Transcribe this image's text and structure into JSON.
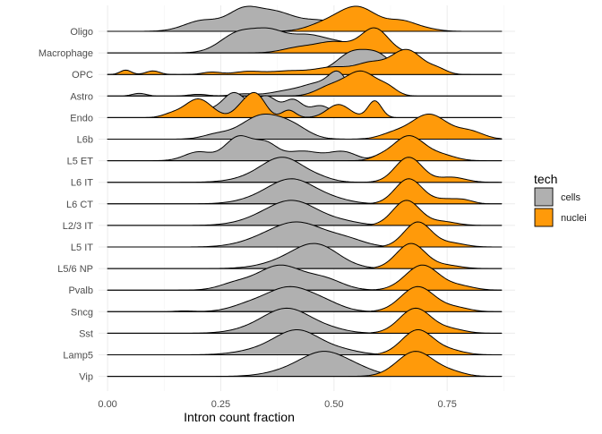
{
  "chart_data": {
    "type": "ridgeline",
    "title": "",
    "xlabel": "Intron count fraction",
    "ylabel": "",
    "xlim": [
      -0.02,
      0.9
    ],
    "x_ticks": [
      0.0,
      0.25,
      0.5,
      0.75
    ],
    "x_tick_labels": [
      "0.00",
      "0.25",
      "0.50",
      "0.75"
    ],
    "grid": true,
    "legend": {
      "title": "tech",
      "position": "right",
      "entries": [
        {
          "label": "cells",
          "color": "#b0b0b0"
        },
        {
          "label": "nuclei",
          "color": "#ff9a0a"
        }
      ]
    },
    "baseline_extent": [
      0.0,
      0.87
    ],
    "categories": [
      "Oligo",
      "Macrophage",
      "OPC",
      "Astro",
      "Endo",
      "L6b",
      "L5 ET",
      "L6 IT",
      "L6 CT",
      "L2/3 IT",
      "L5 IT",
      "L5/6 NP",
      "Pvalb",
      "Sncg",
      "Sst",
      "Lamp5",
      "Vip"
    ],
    "series": [
      {
        "name": "cells",
        "color": "#b0b0b0",
        "densities": [
          {
            "category": "Oligo",
            "peaks": [
              [
                0.21,
                0.35,
                0.04
              ],
              [
                0.3,
                0.65,
                0.035
              ],
              [
                0.37,
                0.55,
                0.04
              ],
              [
                0.47,
                0.35,
                0.05
              ]
            ]
          },
          {
            "category": "Macrophage",
            "peaks": [
              [
                0.29,
                0.55,
                0.04
              ],
              [
                0.36,
                0.5,
                0.035
              ],
              [
                0.44,
                0.45,
                0.04
              ],
              [
                0.52,
                0.25,
                0.04
              ]
            ]
          },
          {
            "category": "OPC",
            "peaks": [
              [
                0.44,
                0.12,
                0.03
              ],
              [
                0.54,
                0.7,
                0.035
              ],
              [
                0.6,
                0.55,
                0.03
              ]
            ]
          },
          {
            "category": "Astro",
            "peaks": [
              [
                0.07,
                0.08,
                0.015
              ],
              [
                0.2,
                0.05,
                0.02
              ],
              [
                0.3,
                0.06,
                0.025
              ],
              [
                0.4,
                0.15,
                0.04
              ],
              [
                0.47,
                0.35,
                0.035
              ],
              [
                0.51,
                0.55,
                0.02
              ]
            ]
          },
          {
            "category": "Endo",
            "peaks": [
              [
                0.22,
                0.15,
                0.03
              ],
              [
                0.28,
                0.5,
                0.025
              ],
              [
                0.35,
                0.45,
                0.025
              ],
              [
                0.41,
                0.35,
                0.02
              ],
              [
                0.47,
                0.25,
                0.025
              ]
            ]
          },
          {
            "category": "L6b",
            "peaks": [
              [
                0.24,
                0.15,
                0.03
              ],
              [
                0.34,
                0.8,
                0.045
              ],
              [
                0.41,
                0.35,
                0.035
              ]
            ]
          },
          {
            "category": "L5 ET",
            "peaks": [
              [
                0.2,
                0.2,
                0.03
              ],
              [
                0.29,
                0.55,
                0.03
              ],
              [
                0.35,
                0.35,
                0.025
              ],
              [
                0.43,
                0.22,
                0.04
              ],
              [
                0.52,
                0.2,
                0.03
              ],
              [
                0.6,
                0.12,
                0.015
              ]
            ]
          },
          {
            "category": "L6 IT",
            "peaks": [
              [
                0.33,
                0.2,
                0.05
              ],
              [
                0.39,
                0.95,
                0.045
              ],
              [
                0.47,
                0.12,
                0.03
              ]
            ]
          },
          {
            "category": "L6 CT",
            "peaks": [
              [
                0.34,
                0.2,
                0.05
              ],
              [
                0.41,
                1.0,
                0.05
              ],
              [
                0.5,
                0.15,
                0.04
              ]
            ]
          },
          {
            "category": "L2/3 IT",
            "peaks": [
              [
                0.33,
                0.15,
                0.05
              ],
              [
                0.41,
                0.95,
                0.055
              ],
              [
                0.52,
                0.12,
                0.04
              ]
            ]
          },
          {
            "category": "L5 IT",
            "peaks": [
              [
                0.33,
                0.12,
                0.05
              ],
              [
                0.42,
                0.8,
                0.06
              ],
              [
                0.53,
                0.2,
                0.04
              ]
            ]
          },
          {
            "category": "L5/6 NP",
            "peaks": [
              [
                0.38,
                0.2,
                0.05
              ],
              [
                0.46,
                1.0,
                0.05
              ]
            ]
          },
          {
            "category": "Pvalb",
            "peaks": [
              [
                0.28,
                0.2,
                0.035
              ],
              [
                0.38,
                0.85,
                0.05
              ],
              [
                0.48,
                0.35,
                0.04
              ]
            ]
          },
          {
            "category": "Sncg",
            "peaks": [
              [
                0.17,
                0.03,
                0.02
              ],
              [
                0.31,
                0.25,
                0.04
              ],
              [
                0.4,
                1.0,
                0.05
              ],
              [
                0.48,
                0.3,
                0.04
              ]
            ]
          },
          {
            "category": "Sst",
            "peaks": [
              [
                0.33,
                0.2,
                0.05
              ],
              [
                0.4,
                1.0,
                0.05
              ],
              [
                0.49,
                0.15,
                0.04
              ]
            ]
          },
          {
            "category": "Lamp5",
            "peaks": [
              [
                0.33,
                0.15,
                0.05
              ],
              [
                0.42,
                0.95,
                0.05
              ],
              [
                0.52,
                0.15,
                0.04
              ]
            ]
          },
          {
            "category": "Vip",
            "peaks": [
              [
                0.4,
                0.2,
                0.05
              ],
              [
                0.48,
                0.95,
                0.05
              ],
              [
                0.56,
                0.2,
                0.04
              ]
            ]
          }
        ]
      },
      {
        "name": "nuclei",
        "color": "#ff9a0a",
        "densities": [
          {
            "category": "Oligo",
            "peaks": [
              [
                0.47,
                0.2,
                0.035
              ],
              [
                0.55,
                1.0,
                0.045
              ],
              [
                0.65,
                0.35,
                0.03
              ],
              [
                0.7,
                0.1,
                0.03
              ]
            ]
          },
          {
            "category": "Macrophage",
            "peaks": [
              [
                0.42,
                0.2,
                0.035
              ],
              [
                0.5,
                0.45,
                0.04
              ],
              [
                0.59,
                1.0,
                0.03
              ]
            ]
          },
          {
            "category": "OPC",
            "peaks": [
              [
                0.04,
                0.15,
                0.012
              ],
              [
                0.1,
                0.12,
                0.015
              ],
              [
                0.23,
                0.08,
                0.02
              ],
              [
                0.31,
                0.1,
                0.03
              ],
              [
                0.4,
                0.12,
                0.04
              ],
              [
                0.5,
                0.25,
                0.04
              ],
              [
                0.58,
                0.35,
                0.03
              ],
              [
                0.66,
                0.85,
                0.035
              ],
              [
                0.73,
                0.15,
                0.02
              ]
            ]
          },
          {
            "category": "Astro",
            "peaks": [
              [
                0.49,
                0.35,
                0.03
              ],
              [
                0.56,
                1.0,
                0.035
              ],
              [
                0.62,
                0.25,
                0.02
              ]
            ]
          },
          {
            "category": "Endo",
            "peaks": [
              [
                0.14,
                0.08,
                0.02
              ],
              [
                0.2,
                0.5,
                0.03
              ],
              [
                0.3,
                0.3,
                0.02
              ],
              [
                0.33,
                0.55,
                0.02
              ],
              [
                0.4,
                0.2,
                0.015
              ],
              [
                0.51,
                0.35,
                0.025
              ],
              [
                0.59,
                0.45,
                0.015
              ]
            ]
          },
          {
            "category": "L6b",
            "peaks": [
              [
                0.63,
                0.2,
                0.03
              ],
              [
                0.71,
                1.0,
                0.04
              ],
              [
                0.8,
                0.3,
                0.03
              ]
            ]
          },
          {
            "category": "L5 ET",
            "peaks": [
              [
                0.6,
                0.1,
                0.02
              ],
              [
                0.665,
                1.0,
                0.035
              ],
              [
                0.74,
                0.2,
                0.03
              ]
            ]
          },
          {
            "category": "L6 IT",
            "peaks": [
              [
                0.665,
                1.0,
                0.03
              ],
              [
                0.76,
                0.2,
                0.03
              ]
            ]
          },
          {
            "category": "L6 CT",
            "peaks": [
              [
                0.665,
                1.0,
                0.03
              ],
              [
                0.75,
                0.18,
                0.03
              ],
              [
                0.79,
                0.1,
                0.02
              ]
            ]
          },
          {
            "category": "L2/3 IT",
            "peaks": [
              [
                0.66,
                1.0,
                0.03
              ],
              [
                0.74,
                0.15,
                0.03
              ]
            ]
          },
          {
            "category": "L5 IT",
            "peaks": [
              [
                0.685,
                1.0,
                0.03
              ],
              [
                0.76,
                0.15,
                0.03
              ]
            ]
          },
          {
            "category": "L5/6 NP",
            "peaks": [
              [
                0.67,
                1.0,
                0.032
              ],
              [
                0.75,
                0.12,
                0.03
              ]
            ]
          },
          {
            "category": "Pvalb",
            "peaks": [
              [
                0.695,
                1.0,
                0.037
              ],
              [
                0.78,
                0.15,
                0.03
              ]
            ]
          },
          {
            "category": "Sncg",
            "peaks": [
              [
                0.685,
                1.0,
                0.037
              ],
              [
                0.77,
                0.15,
                0.03
              ]
            ]
          },
          {
            "category": "Sst",
            "peaks": [
              [
                0.68,
                1.0,
                0.035
              ],
              [
                0.76,
                0.15,
                0.03
              ]
            ]
          },
          {
            "category": "Lamp5",
            "peaks": [
              [
                0.685,
                1.0,
                0.035
              ],
              [
                0.76,
                0.15,
                0.03
              ]
            ]
          },
          {
            "category": "Vip",
            "peaks": [
              [
                0.68,
                1.0,
                0.04
              ],
              [
                0.76,
                0.15,
                0.03
              ]
            ]
          }
        ]
      }
    ]
  }
}
